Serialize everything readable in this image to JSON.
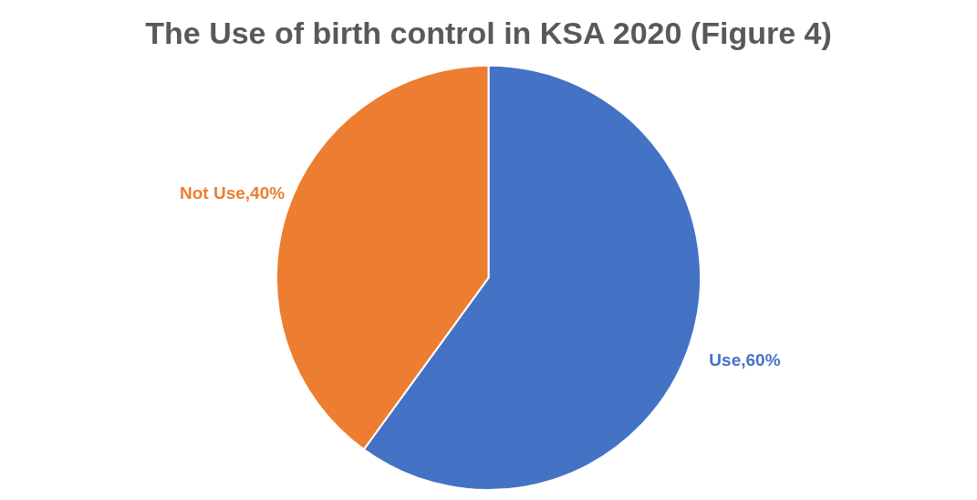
{
  "chart_data": {
    "type": "pie",
    "title": "The Use of birth control in KSA 2020 (Figure 4)",
    "categories": [
      "Use",
      "Not Use"
    ],
    "values": [
      60,
      40
    ],
    "colors": [
      "#4472c4",
      "#ed7d31"
    ],
    "value_labels": [
      ",60%",
      ",40%"
    ],
    "legend": false
  }
}
